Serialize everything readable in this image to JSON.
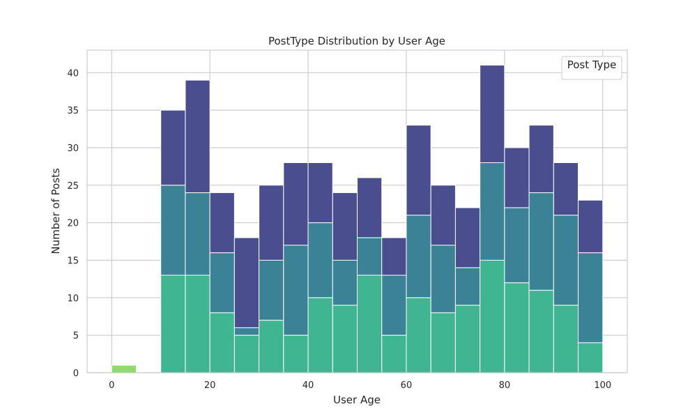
{
  "chart_data": {
    "type": "bar",
    "stacked": true,
    "title": "PostType Distribution by User Age",
    "xlabel": "User Age",
    "ylabel": "Number of Posts",
    "xlim": [
      -5,
      105
    ],
    "ylim": [
      0,
      43
    ],
    "x_ticks": [
      0,
      20,
      40,
      60,
      80,
      100
    ],
    "y_ticks": [
      0,
      5,
      10,
      15,
      20,
      25,
      30,
      35,
      40
    ],
    "grid": true,
    "legend": {
      "title": "Post Type",
      "position": "top-right"
    },
    "colors": {
      "bottom": "#40b592",
      "middle": "#3b8297",
      "top": "#4a4e8e",
      "small": "#8fdc6a"
    },
    "bins": [
      {
        "x0": 0,
        "x1": 5,
        "bottom": 1,
        "middle": 1,
        "total": 1,
        "color_override": "small"
      },
      {
        "x0": 10,
        "x1": 15,
        "bottom": 13,
        "middle": 25,
        "total": 35
      },
      {
        "x0": 15,
        "x1": 20,
        "bottom": 13,
        "middle": 24,
        "total": 39
      },
      {
        "x0": 20,
        "x1": 25,
        "bottom": 8,
        "middle": 16,
        "total": 24
      },
      {
        "x0": 25,
        "x1": 30,
        "bottom": 5,
        "middle": 6,
        "total": 18
      },
      {
        "x0": 30,
        "x1": 35,
        "bottom": 7,
        "middle": 15,
        "total": 25
      },
      {
        "x0": 35,
        "x1": 40,
        "bottom": 5,
        "middle": 17,
        "total": 28
      },
      {
        "x0": 40,
        "x1": 45,
        "bottom": 10,
        "middle": 20,
        "total": 28
      },
      {
        "x0": 45,
        "x1": 50,
        "bottom": 9,
        "middle": 15,
        "total": 24
      },
      {
        "x0": 50,
        "x1": 55,
        "bottom": 13,
        "middle": 18,
        "total": 26
      },
      {
        "x0": 55,
        "x1": 60,
        "bottom": 5,
        "middle": 13,
        "total": 18
      },
      {
        "x0": 60,
        "x1": 65,
        "bottom": 10,
        "middle": 21,
        "total": 33
      },
      {
        "x0": 65,
        "x1": 70,
        "bottom": 8,
        "middle": 17,
        "total": 25
      },
      {
        "x0": 70,
        "x1": 75,
        "bottom": 9,
        "middle": 14,
        "total": 22
      },
      {
        "x0": 75,
        "x1": 80,
        "bottom": 15,
        "middle": 28,
        "total": 41
      },
      {
        "x0": 80,
        "x1": 85,
        "bottom": 12,
        "middle": 22,
        "total": 30
      },
      {
        "x0": 85,
        "x1": 90,
        "bottom": 11,
        "middle": 24,
        "total": 33
      },
      {
        "x0": 90,
        "x1": 95,
        "bottom": 9,
        "middle": 21,
        "total": 28
      },
      {
        "x0": 95,
        "x1": 100,
        "bottom": 4,
        "middle": 16,
        "total": 23
      }
    ]
  }
}
